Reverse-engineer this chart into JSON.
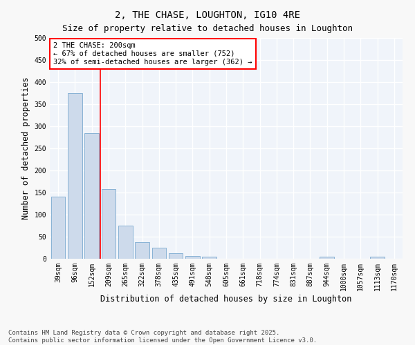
{
  "title": "2, THE CHASE, LOUGHTON, IG10 4RE",
  "subtitle": "Size of property relative to detached houses in Loughton",
  "xlabel": "Distribution of detached houses by size in Loughton",
  "ylabel": "Number of detached properties",
  "categories": [
    "39sqm",
    "96sqm",
    "152sqm",
    "209sqm",
    "265sqm",
    "322sqm",
    "378sqm",
    "435sqm",
    "491sqm",
    "548sqm",
    "605sqm",
    "661sqm",
    "718sqm",
    "774sqm",
    "831sqm",
    "887sqm",
    "944sqm",
    "1000sqm",
    "1057sqm",
    "1113sqm",
    "1170sqm"
  ],
  "values": [
    140,
    375,
    285,
    158,
    75,
    37,
    25,
    12,
    7,
    5,
    0,
    0,
    0,
    0,
    0,
    0,
    5,
    0,
    0,
    5,
    0
  ],
  "bar_color": "#cddaeb",
  "bar_edge_color": "#7aaad0",
  "vline_color": "red",
  "vline_x": 2.5,
  "annotation_text": "2 THE CHASE: 200sqm\n← 67% of detached houses are smaller (752)\n32% of semi-detached houses are larger (362) →",
  "annotation_box_facecolor": "white",
  "annotation_box_edgecolor": "red",
  "ylim": [
    0,
    500
  ],
  "yticks": [
    0,
    50,
    100,
    150,
    200,
    250,
    300,
    350,
    400,
    450,
    500
  ],
  "footnote": "Contains HM Land Registry data © Crown copyright and database right 2025.\nContains public sector information licensed under the Open Government Licence v3.0.",
  "fig_facecolor": "#f8f8f8",
  "plot_facecolor": "#f0f4fa",
  "title_fontsize": 10,
  "subtitle_fontsize": 9,
  "axis_label_fontsize": 8.5,
  "tick_fontsize": 7,
  "annotation_fontsize": 7.5,
  "footnote_fontsize": 6.5,
  "grid_color": "white",
  "grid_linewidth": 1.0
}
